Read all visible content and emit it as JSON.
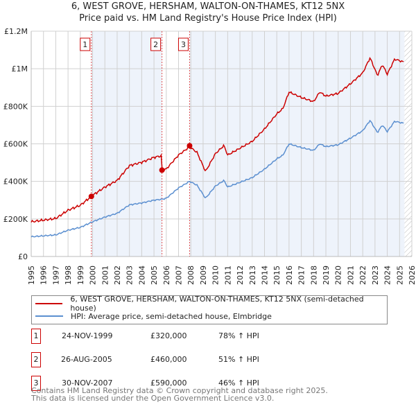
{
  "chart_data": {
    "type": "line",
    "title": "6, WEST GROVE, HERSHAM, WALTON-ON-THAMES, KT12 5NX",
    "subtitle": "Price paid vs. HM Land Registry's House Price Index (HPI)",
    "xlim": [
      1995,
      2026
    ],
    "ylim": [
      0,
      1200000
    ],
    "x_ticks": [
      "1995",
      "1996",
      "1997",
      "1998",
      "1999",
      "2000",
      "2001",
      "2002",
      "2003",
      "2004",
      "2005",
      "2006",
      "2007",
      "2008",
      "2009",
      "2010",
      "2011",
      "2012",
      "2013",
      "2014",
      "2015",
      "2016",
      "2017",
      "2018",
      "2019",
      "2020",
      "2021",
      "2022",
      "2023",
      "2024",
      "2025",
      "2026"
    ],
    "y_ticks": [
      {
        "v": 0,
        "label": "£0"
      },
      {
        "v": 200000,
        "label": "£200K"
      },
      {
        "v": 400000,
        "label": "£400K"
      },
      {
        "v": 600000,
        "label": "£600K"
      },
      {
        "v": 800000,
        "label": "£800K"
      },
      {
        "v": 1000000,
        "label": "£1M"
      },
      {
        "v": 1200000,
        "label": "£1.2M"
      }
    ],
    "grid": true,
    "colors": {
      "property": "#cc0000",
      "hpi": "#5b8fd0",
      "shade": "#eef3fb"
    },
    "hpi": {
      "name": "HPI: Average price, semi-detached house, Elmbridge",
      "x": [
        1995,
        1996,
        1997,
        1998,
        1999,
        2000,
        2001,
        2002,
        2003,
        2004,
        2005,
        2005.65,
        2006,
        2007,
        2007.9,
        2008.5,
        2009.2,
        2010,
        2010.7,
        2011,
        2012,
        2013,
        2014,
        2015,
        2015.5,
        2016,
        2017,
        2018,
        2018.5,
        2019,
        2020,
        2021,
        2022,
        2022.6,
        2023.2,
        2023.6,
        2024,
        2024.6,
        2025.3
      ],
      "y": [
        105000,
        110000,
        115000,
        140000,
        155000,
        185000,
        210000,
        230000,
        275000,
        285000,
        300000,
        305000,
        310000,
        365000,
        400000,
        380000,
        310000,
        375000,
        405000,
        370000,
        395000,
        420000,
        465000,
        520000,
        540000,
        600000,
        580000,
        565000,
        600000,
        585000,
        595000,
        630000,
        670000,
        725000,
        660000,
        700000,
        665000,
        720000,
        710000
      ]
    },
    "property": {
      "name": "6, WEST GROVE, HERSHAM, WALTON-ON-THAMES, KT12 5NX (semi-detached house)"
    },
    "sales": [
      {
        "n": "1",
        "x": 1999.9,
        "price": 320000,
        "date": "24-NOV-1999",
        "price_label": "£320,000",
        "hpi_label": "78% ↑ HPI"
      },
      {
        "n": "2",
        "x": 2005.65,
        "price": 460000,
        "date": "26-AUG-2005",
        "price_label": "£460,000",
        "hpi_label": "51% ↑ HPI"
      },
      {
        "n": "3",
        "x": 2007.9,
        "price": 590000,
        "date": "30-NOV-2007",
        "price_label": "£590,000",
        "hpi_label": "46% ↑ HPI"
      }
    ],
    "data_end": 2025.4
  },
  "footer": [
    "Contains HM Land Registry data © Crown copyright and database right 2025.",
    "This data is licensed under the Open Government Licence v3.0."
  ]
}
